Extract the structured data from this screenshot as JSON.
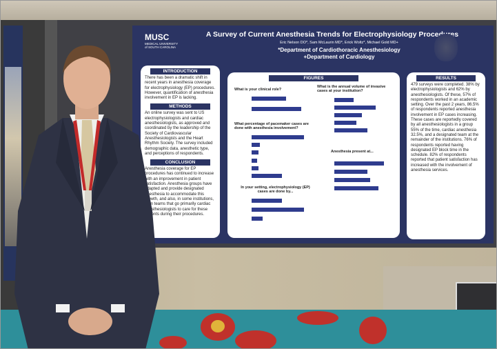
{
  "poster": {
    "title": "A Survey of Current Anesthesia Trends for Electrophysiology Procedures",
    "authors": "Eric Nelson DO*, Sam McLaurin MD*, Erick Woltz*, Michael Gold MD+",
    "dept1": "*Department of Cardiothoracic Anesthesiology",
    "dept2": "+Department of Cardiology",
    "logo": {
      "mark": "MUSC",
      "line1": "MEDICAL UNIVERSITY",
      "line2": "of SOUTH CAROLINA"
    },
    "introduction": {
      "heading": "INTRODUCTION",
      "text": "There has been a dramatic shift in recent years in anesthesia coverage for electrophysiology (EP) procedures. However, quantification of anesthesia involvement in EP is lacking."
    },
    "methods": {
      "heading": "METHODS",
      "text": "An online survey was sent to US electrophysiologists and cardiac anesthesiologists, as approved and coordinated by the leadership of the Society of Cardiovascular Anesthesiologists and the Heart Rhythm Society. The survey included demographic data, anesthetic type, and perceptions of respondents."
    },
    "conclusion": {
      "heading": "CONCLUSION",
      "text": "Anesthesia coverage for EP procedures has continued to increase with an improvement in patient satisfaction. Anesthesia groups have adapted and provide designated anesthesia to accommodate this growth, and also, in some institutions, form teams that go primarily cardiac anesthesiologists to care for these patients during their procedures."
    },
    "figures": {
      "heading": "FIGURES",
      "q1": "What is your clinical role?",
      "q2": "What is the annual volume of invasive cases at your institution?",
      "q3": "What percentage of pacemaker cases are done with anesthesia involvement?",
      "q4": "Anesthesia present at...",
      "q5": "In your setting, electrophysiology (EP) cases are done by..."
    },
    "results": {
      "heading": "RESULTS",
      "text": "479 surveys were completed. 38% by electrophysiologists and 62% by anesthesiologists. Of these, 57% of respondents worked in an academic setting. Over the past 2 years, 86.5% of respondents reported anesthesia involvement in EP cases increasing. These cases are reportedly covered by all anesthesiologists in a group 55% of the time, cardiac anesthesia 32.5%, and a designated team at the remainder of the institutions. 76% of respondents reported having designated EP block time in the schedule. 82% of respondents reported that patient satisfaction has increased with the involvement of anesthesia services."
    }
  },
  "charts": {
    "q1_values": [
      0.62,
      0.9
    ],
    "q2_values": [
      0.35,
      0.75,
      0.5,
      0.4,
      0.6
    ],
    "q3_values": [
      0.95,
      0.15,
      0.12,
      0.1,
      0.12,
      0.55
    ],
    "q4_values": [
      0.9,
      0.6,
      0.65,
      0.8
    ],
    "q5_values": [
      0.55,
      0.95,
      0.2
    ]
  },
  "colors": {
    "poster_bg": "#2b3463",
    "bar": "#2f3c8e",
    "carpet": "#2e8f9a"
  }
}
